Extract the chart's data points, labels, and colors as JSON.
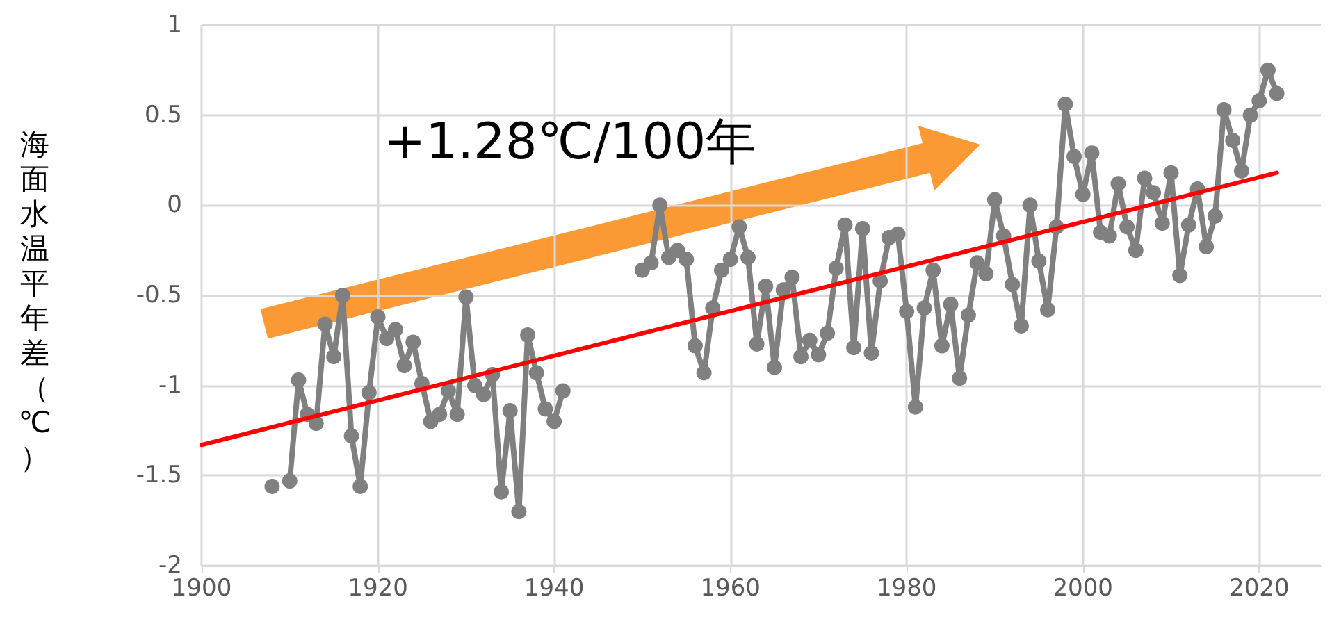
{
  "chart_data": {
    "type": "line",
    "ylabel": "海面水温平年差（℃）",
    "annotations": [
      "+1.28℃/100年"
    ],
    "xlim": [
      1900,
      2027
    ],
    "xticks": [
      1900,
      1920,
      1940,
      1960,
      1980,
      2000,
      2020
    ],
    "ylim": [
      -2,
      1
    ],
    "yticks": [
      -2,
      -1.5,
      -1,
      -0.5,
      0,
      0.5,
      1
    ],
    "grid": true,
    "series": [
      {
        "color": "#808080",
        "marker": "circle",
        "x": [
          1908,
          1909,
          1910,
          1911,
          1912,
          1913,
          1914,
          1915,
          1916,
          1917,
          1918,
          1919,
          1920,
          1921,
          1922,
          1923,
          1924,
          1925,
          1926,
          1927,
          1928,
          1929,
          1930,
          1931,
          1932,
          1933,
          1934,
          1935,
          1936,
          1937,
          1938,
          1939,
          1940,
          1941,
          1942,
          1943,
          1944,
          1945,
          1946,
          1947,
          1948,
          1949,
          1950,
          1951,
          1952,
          1953,
          1954,
          1955,
          1956,
          1957,
          1958,
          1959,
          1960,
          1961,
          1962,
          1963,
          1964,
          1965,
          1966,
          1967,
          1968,
          1969,
          1970,
          1971,
          1972,
          1973,
          1974,
          1975,
          1976,
          1977,
          1978,
          1979,
          1980,
          1981,
          1982,
          1983,
          1984,
          1985,
          1986,
          1987,
          1988,
          1989,
          1990,
          1991,
          1992,
          1993,
          1994,
          1995,
          1996,
          1997,
          1998,
          1999,
          2000,
          2001,
          2002,
          2003,
          2004,
          2005,
          2006,
          2007,
          2008,
          2009,
          2010,
          2011,
          2012,
          2013,
          2014,
          2015,
          2016,
          2017,
          2018,
          2019,
          2020,
          2021,
          2022
        ],
        "values": [
          -1.56,
          null,
          -1.53,
          -0.97,
          -1.16,
          -1.21,
          -0.66,
          -0.84,
          -0.5,
          -1.28,
          -1.56,
          -1.04,
          -0.62,
          -0.74,
          -0.69,
          -0.89,
          -0.76,
          -0.99,
          -1.2,
          -1.16,
          -1.03,
          -1.16,
          -0.51,
          -1.0,
          -1.05,
          -0.94,
          -1.59,
          -1.14,
          -1.7,
          -0.72,
          -0.93,
          -1.13,
          -1.2,
          -1.03,
          null,
          null,
          null,
          null,
          null,
          null,
          null,
          null,
          -0.36,
          -0.32,
          0.0,
          -0.29,
          -0.25,
          -0.3,
          -0.78,
          -0.93,
          -0.57,
          -0.36,
          -0.3,
          -0.12,
          -0.29,
          -0.77,
          -0.45,
          -0.9,
          -0.47,
          -0.4,
          -0.84,
          -0.75,
          -0.83,
          -0.71,
          -0.35,
          -0.11,
          -0.79,
          -0.13,
          -0.82,
          -0.42,
          -0.18,
          -0.16,
          -0.59,
          -1.12,
          -0.57,
          -0.36,
          -0.78,
          -0.55,
          -0.96,
          -0.61,
          -0.32,
          -0.38,
          0.03,
          -0.17,
          -0.44,
          -0.67,
          0.0,
          -0.31,
          -0.58,
          -0.12,
          0.56,
          0.27,
          0.06,
          0.29,
          -0.15,
          -0.17,
          0.12,
          -0.12,
          -0.25,
          0.15,
          0.07,
          -0.1,
          0.18,
          -0.39,
          -0.11,
          0.09,
          -0.23,
          -0.06,
          0.53,
          0.36,
          0.19,
          0.5,
          0.58,
          0.75,
          0.62
        ]
      },
      {
        "color": "#ff0000",
        "marker": "none",
        "x": [
          1900,
          2022
        ],
        "values": [
          -1.33,
          0.18
        ]
      }
    ]
  }
}
